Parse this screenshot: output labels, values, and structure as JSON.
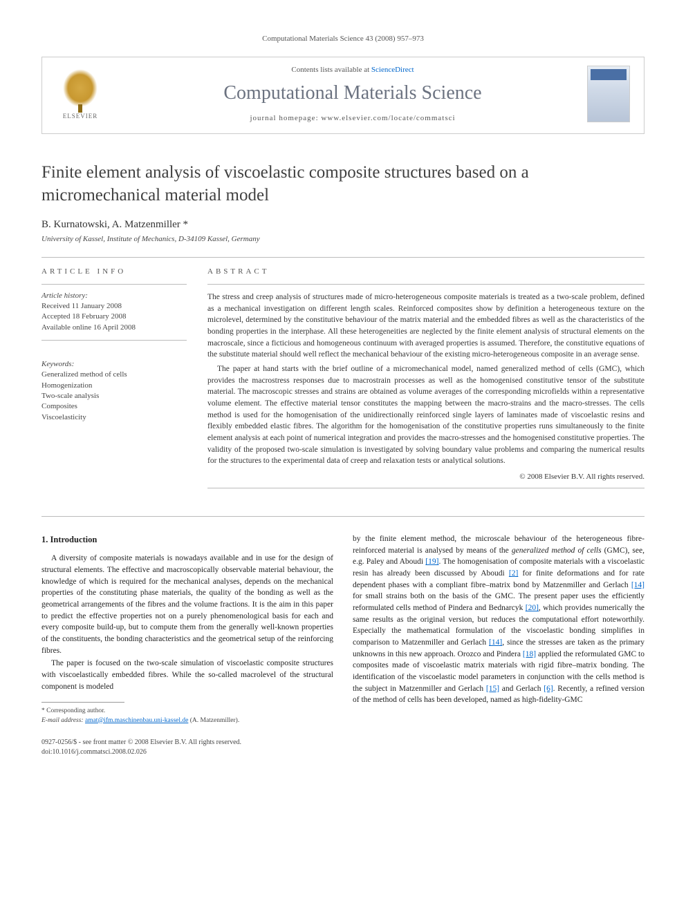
{
  "header": {
    "citation": "Computational Materials Science 43 (2008) 957–973"
  },
  "journal_box": {
    "publisher": "ELSEVIER",
    "contents_prefix": "Contents lists available at ",
    "contents_link": "ScienceDirect",
    "journal_title": "Computational Materials Science",
    "homepage_label": "journal homepage: www.elsevier.com/locate/commatsci",
    "cover_label": "COMPUTATIONAL MATERIALS SCIENCE"
  },
  "article": {
    "title": "Finite element analysis of viscoelastic composite structures based on a micromechanical material model",
    "authors": "B. Kurnatowski, A. Matzenmiller *",
    "affiliation": "University of Kassel, Institute of Mechanics, D-34109 Kassel, Germany"
  },
  "article_info": {
    "label": "ARTICLE INFO",
    "history_label": "Article history:",
    "received": "Received 11 January 2008",
    "accepted": "Accepted 18 February 2008",
    "online": "Available online 16 April 2008",
    "keywords_label": "Keywords:",
    "keywords": [
      "Generalized method of cells",
      "Homogenization",
      "Two-scale analysis",
      "Composites",
      "Viscoelasticity"
    ]
  },
  "abstract": {
    "label": "ABSTRACT",
    "p1": "The stress and creep analysis of structures made of micro-heterogeneous composite materials is treated as a two-scale problem, defined as a mechanical investigation on different length scales. Reinforced composites show by definition a heterogeneous texture on the microlevel, determined by the constitutive behaviour of the matrix material and the embedded fibres as well as the characteristics of the bonding properties in the interphase. All these heterogeneities are neglected by the finite element analysis of structural elements on the macroscale, since a ficticious and homogeneous continuum with averaged properties is assumed. Therefore, the constitutive equations of the substitute material should well reflect the mechanical behaviour of the existing micro-heterogeneous composite in an average sense.",
    "p2": "The paper at hand starts with the brief outline of a micromechanical model, named generalized method of cells (GMC), which provides the macrostress responses due to macrostrain processes as well as the homogenised constitutive tensor of the substitute material. The macroscopic stresses and strains are obtained as volume averages of the corresponding microfields within a representative volume element. The effective material tensor constitutes the mapping between the macro-strains and the macro-stresses. The cells method is used for the homogenisation of the unidirectionally reinforced single layers of laminates made of viscoelastic resins and flexibly embedded elastic fibres. The algorithm for the homogenisation of the constitutive properties runs simultaneously to the finite element analysis at each point of numerical integration and provides the macro-stresses and the homogenised constitutive properties. The validity of the proposed two-scale simulation is investigated by solving boundary value problems and comparing the numerical results for the structures to the experimental data of creep and relaxation tests or analytical solutions.",
    "copyright": "© 2008 Elsevier B.V. All rights reserved."
  },
  "body": {
    "section_heading": "1. Introduction",
    "col1_p1": "A diversity of composite materials is nowadays available and in use for the design of structural elements. The effective and macroscopically observable material behaviour, the knowledge of which is required for the mechanical analyses, depends on the mechanical properties of the constituting phase materials, the quality of the bonding as well as the geometrical arrangements of the fibres and the volume fractions. It is the aim in this paper to predict the effective properties not on a purely phenomenological basis for each and every composite build-up, but to compute them from the generally well-known properties of the constituents, the bonding characteristics and the geometrical setup of the reinforcing fibres.",
    "col1_p2": "The paper is focused on the two-scale simulation of viscoelastic composite structures with viscoelastically embedded fibres. While the so-called macrolevel of the structural component is modeled",
    "col2_p1_a": "by the finite element method, the microscale behaviour of the heterogeneous fibre-reinforced material is analysed by means of the ",
    "col2_p1_gmc": "generalized method of cells",
    "col2_p1_b": " (GMC), see, e.g. Paley and Aboudi ",
    "col2_p1_c": ". The homogenisation of composite materials with a viscoelastic resin has already been discussed by Aboudi ",
    "col2_p1_d": " for finite deformations and for rate dependent phases with a compliant fibre–matrix bond by Matzenmiller and Gerlach ",
    "col2_p1_e": " for small strains both on the basis of the GMC. The present paper uses the efficiently reformulated cells method of Pindera and Bednarcyk ",
    "col2_p1_f": ", which provides numerically the same results as the original version, but reduces the computational effort noteworthily. Especially the mathematical formulation of the viscoelastic bonding simplifies in comparison to Matzenmiller and Gerlach ",
    "col2_p1_g": ", since the stresses are taken as the primary unknowns in this new approach. Orozco and Pindera ",
    "col2_p1_h": " applied the reformulated GMC to composites made of viscoelastic matrix materials with rigid fibre–matrix bonding. The identification of the viscoelastic model parameters in conjunction with the cells method is the subject in Matzenmiller and Gerlach ",
    "col2_p1_i": " and Gerlach ",
    "col2_p1_j": ". Recently, a refined version of the method of cells has been developed, named as high-fidelity-GMC",
    "refs": {
      "r19": "[19]",
      "r2": "[2]",
      "r14a": "[14]",
      "r20": "[20]",
      "r14b": "[14]",
      "r18": "[18]",
      "r15": "[15]",
      "r6": "[6]"
    }
  },
  "footnote": {
    "corr": "* Corresponding author.",
    "email_label": "E-mail address: ",
    "email": "amat@ifm.maschinenbau.uni-kassel.de",
    "email_suffix": " (A. Matzenmiller)."
  },
  "footer": {
    "line1": "0927-0256/$ - see front matter © 2008 Elsevier B.V. All rights reserved.",
    "line2": "doi:10.1016/j.commatsci.2008.02.026"
  },
  "colors": {
    "link": "#0066cc",
    "journal_title": "#6b7280",
    "text": "#333333",
    "border": "#cccccc"
  }
}
